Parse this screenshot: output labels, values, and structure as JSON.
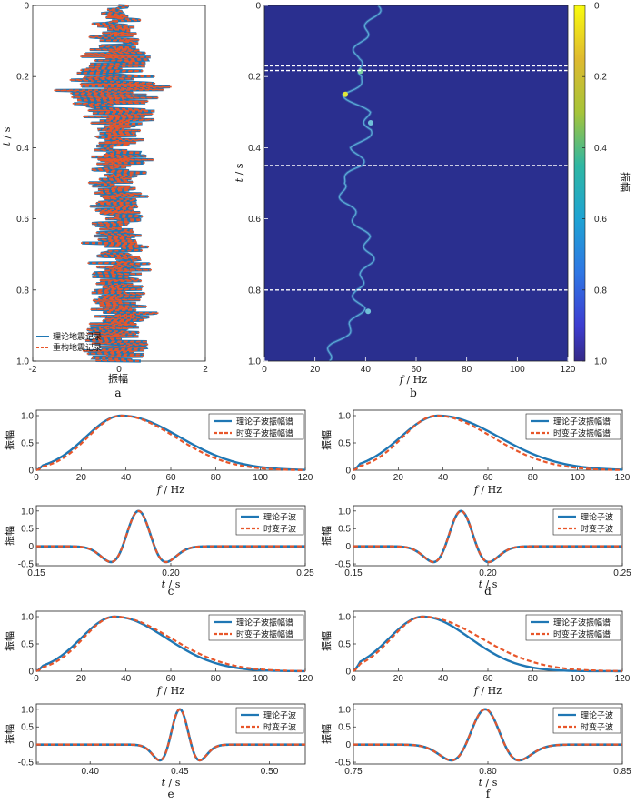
{
  "colors": {
    "theory": "#1f77b4",
    "recon": "#e8562a",
    "heat_bg": "#2a2f8f",
    "dashed_line": "#ffffff"
  },
  "panels": {
    "a": {
      "caption": "a",
      "xlabel": "振幅",
      "ylabel_var": "t",
      "ylabel_unit": "/ s",
      "legend": [
        "理论地震记录",
        "重构地震记录"
      ]
    },
    "b": {
      "caption": "b",
      "xlabel_var": "f",
      "xlabel_unit": "/ Hz",
      "ylabel_var": "t",
      "ylabel_unit": "/ s",
      "colorbar_label": "振幅",
      "colorbar_ticks": [
        "0",
        "0.2",
        "0.4",
        "0.6",
        "0.8",
        "1.0"
      ]
    },
    "c": {
      "caption": "c"
    },
    "d": {
      "caption": "d"
    },
    "e": {
      "caption": "e"
    },
    "f": {
      "caption": "f"
    }
  },
  "spectrum_labels": {
    "ylabel": "振幅",
    "xlabel_var": "f",
    "xlabel_unit": "/ Hz",
    "legend": [
      "理论子波振幅谱",
      "时变子波振幅谱"
    ]
  },
  "wavelet_labels": {
    "ylabel": "振幅",
    "xlabel_var": "t",
    "xlabel_unit": "/ s",
    "legend": [
      "理论子波",
      "时变子波"
    ]
  },
  "chart_data": [
    {
      "id": "a",
      "type": "line",
      "orientation": "vertical trace",
      "x_name": "振幅",
      "y_name": "t / s",
      "xlim": [
        -2,
        2
      ],
      "ylim": [
        0,
        1.0
      ],
      "y_inverted": true,
      "xticks": [
        "-2",
        "0",
        "2"
      ],
      "yticks": [
        "0",
        "0.2",
        "0.4",
        "0.6",
        "0.8",
        "1.0"
      ],
      "legend_position": "bottom-left",
      "series": [
        {
          "name": "理论地震记录",
          "style": "solid"
        },
        {
          "name": "重构地震记录",
          "style": "dashed"
        }
      ],
      "t": [
        0,
        0.025,
        0.05,
        0.075,
        0.1,
        0.125,
        0.15,
        0.175,
        0.2,
        0.225,
        0.25,
        0.275,
        0.3,
        0.325,
        0.35,
        0.375,
        0.4,
        0.425,
        0.45,
        0.475,
        0.5,
        0.525,
        0.55,
        0.575,
        0.6,
        0.625,
        0.65,
        0.675,
        0.7,
        0.725,
        0.75,
        0.775,
        0.8,
        0.825,
        0.85,
        0.875,
        0.9,
        0.925,
        0.95,
        0.975,
        1.0
      ],
      "envelope": [
        0.3,
        0.4,
        0.6,
        0.5,
        0.7,
        0.8,
        0.9,
        1.0,
        1.2,
        1.3,
        1.6,
        1.2,
        1.0,
        0.8,
        0.6,
        0.7,
        0.6,
        0.8,
        0.7,
        0.6,
        0.7,
        0.8,
        0.6,
        0.7,
        0.7,
        0.6,
        0.7,
        0.8,
        0.6,
        0.8,
        0.7,
        0.8,
        0.7,
        0.8,
        0.8,
        0.9,
        0.8,
        0.9,
        0.9,
        0.9,
        0.7
      ]
    },
    {
      "id": "b",
      "type": "heatmap",
      "x_name": "f / Hz",
      "y_name": "t / s",
      "xlim": [
        0,
        120
      ],
      "ylim": [
        0,
        1.0
      ],
      "y_inverted": true,
      "xticks": [
        "0",
        "20",
        "40",
        "60",
        "80",
        "100",
        "120"
      ],
      "yticks": [
        "0",
        "0.2",
        "0.4",
        "0.6",
        "0.8",
        "1.0"
      ],
      "colorbar_range": [
        0,
        1.0
      ],
      "colorbar_ticks": [
        "0",
        "0.2",
        "0.4",
        "0.6",
        "0.8",
        "1.0"
      ],
      "dashed_lines_t": [
        0.17,
        0.183,
        0.45,
        0.8
      ],
      "ridge": {
        "t": [
          0.0,
          0.05,
          0.1,
          0.15,
          0.2,
          0.25,
          0.3,
          0.35,
          0.4,
          0.45,
          0.5,
          0.55,
          0.6,
          0.65,
          0.7,
          0.75,
          0.8,
          0.85,
          0.9,
          0.95,
          1.0
        ],
        "f": [
          45,
          42,
          38,
          36,
          40,
          32,
          40,
          42,
          36,
          38,
          30,
          32,
          36,
          40,
          42,
          40,
          36,
          38,
          35,
          28,
          24
        ]
      }
    },
    {
      "id": "c-spectrum",
      "type": "line",
      "xlim": [
        0,
        120
      ],
      "ylim": [
        0,
        1.0
      ],
      "xticks": [
        "0",
        "20",
        "40",
        "60",
        "80",
        "100",
        "120"
      ],
      "yticks": [
        "0",
        "0.5",
        "1.0"
      ],
      "legend_position": "top-right",
      "series": [
        {
          "name": "理论子波振幅谱",
          "peak_f": 38,
          "sigma_lo": 16,
          "sigma_hi": 26
        },
        {
          "name": "时变子波振幅谱",
          "peak_f": 38,
          "sigma_lo": 15,
          "sigma_hi": 24
        }
      ]
    },
    {
      "id": "d-spectrum",
      "type": "line",
      "xlim": [
        0,
        120
      ],
      "ylim": [
        0,
        1.0
      ],
      "xticks": [
        "0",
        "20",
        "40",
        "60",
        "80",
        "100",
        "120"
      ],
      "yticks": [
        "0",
        "0.5",
        "1.0"
      ],
      "legend_position": "top-right",
      "series": [
        {
          "name": "理论子波振幅谱",
          "peak_f": 38,
          "sigma_lo": 17,
          "sigma_hi": 27
        },
        {
          "name": "时变子波振幅谱",
          "peak_f": 37,
          "sigma_lo": 15,
          "sigma_hi": 25
        }
      ]
    },
    {
      "id": "c-wavelet",
      "type": "line",
      "xlim": [
        0.15,
        0.25
      ],
      "ylim": [
        -0.5,
        1.0
      ],
      "xticks": [
        "0.15",
        "0.20",
        "0.25"
      ],
      "yticks": [
        "-0.5",
        "0",
        "0.5",
        "1.0"
      ],
      "legend_position": "top-right",
      "series": [
        {
          "name": "理论子波",
          "center": 0.188,
          "freq": 38
        },
        {
          "name": "时变子波",
          "center": 0.188,
          "freq": 38
        }
      ]
    },
    {
      "id": "d-wavelet",
      "type": "line",
      "xlim": [
        0.15,
        0.25
      ],
      "ylim": [
        -0.5,
        1.0
      ],
      "xticks": [
        "0.15",
        "0.20",
        "0.25"
      ],
      "yticks": [
        "-0.5",
        "0",
        "0.5",
        "1.0"
      ],
      "legend_position": "top-right",
      "series": [
        {
          "name": "理论子波",
          "center": 0.19,
          "freq": 38
        },
        {
          "name": "时变子波",
          "center": 0.19,
          "freq": 38
        }
      ]
    },
    {
      "id": "e-spectrum",
      "type": "line",
      "xlim": [
        0,
        120
      ],
      "ylim": [
        0,
        1.0
      ],
      "xticks": [
        "0",
        "20",
        "40",
        "60",
        "80",
        "100",
        "120"
      ],
      "yticks": [
        "0",
        "0.5",
        "1.0"
      ],
      "legend_position": "top-right",
      "series": [
        {
          "name": "理论子波振幅谱",
          "peak_f": 35,
          "sigma_lo": 15,
          "sigma_hi": 23
        },
        {
          "name": "时变子波振幅谱",
          "peak_f": 35,
          "sigma_lo": 14,
          "sigma_hi": 25
        }
      ]
    },
    {
      "id": "f-spectrum",
      "type": "line",
      "xlim": [
        0,
        120
      ],
      "ylim": [
        0,
        1.0
      ],
      "xticks": [
        "0",
        "20",
        "40",
        "60",
        "80",
        "100",
        "120"
      ],
      "yticks": [
        "0",
        "0.5",
        "1.0"
      ],
      "legend_position": "top-right",
      "series": [
        {
          "name": "理论子波振幅谱",
          "peak_f": 31,
          "sigma_lo": 15,
          "sigma_hi": 21
        },
        {
          "name": "时变子波振幅谱",
          "peak_f": 31,
          "sigma_lo": 14,
          "sigma_hi": 26
        }
      ]
    },
    {
      "id": "e-wavelet",
      "type": "line",
      "xlim": [
        0.37,
        0.52
      ],
      "ylim": [
        -0.5,
        1.0
      ],
      "xticks": [
        "0.40",
        "0.45",
        "0.50"
      ],
      "yticks": [
        "-0.5",
        "0",
        "0.5",
        "1.0"
      ],
      "legend_position": "top-right",
      "series": [
        {
          "name": "理论子波",
          "center": 0.45,
          "freq": 35
        },
        {
          "name": "时变子波",
          "center": 0.45,
          "freq": 35
        }
      ]
    },
    {
      "id": "f-wavelet",
      "type": "line",
      "xlim": [
        0.75,
        0.85
      ],
      "ylim": [
        -0.5,
        1.0
      ],
      "xticks": [
        "0.75",
        "0.80",
        "0.85"
      ],
      "yticks": [
        "-0.5",
        "0",
        "0.5",
        "1.0"
      ],
      "legend_position": "top-right",
      "series": [
        {
          "name": "理论子波",
          "center": 0.799,
          "freq": 31
        },
        {
          "name": "时变子波",
          "center": 0.799,
          "freq": 31
        }
      ]
    }
  ]
}
